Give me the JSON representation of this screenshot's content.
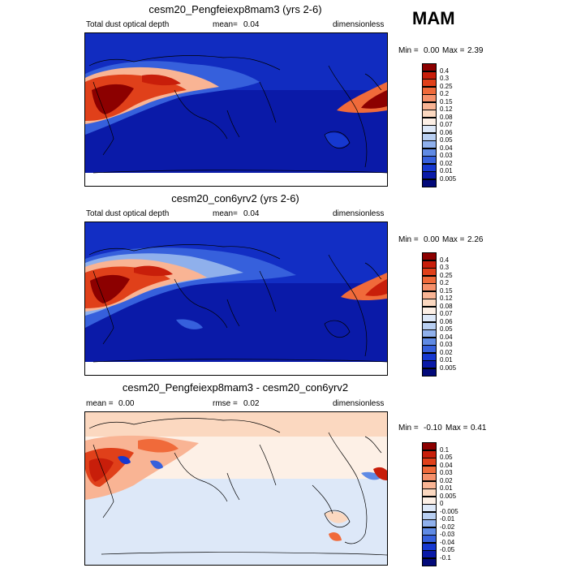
{
  "season": "MAM",
  "panels": [
    {
      "title": "cesm20_Pengfeiexp8mam3 (yrs 2-6)",
      "left_label": "Total dust optical depth",
      "mean_label": "mean=",
      "mean_value": "0.04",
      "units": "dimensionless",
      "min_label": "Min =",
      "min_value": "0.00",
      "max_label": "Max =",
      "max_value": "2.39",
      "levels": [
        "0.4",
        "0.3",
        "0.25",
        "0.2",
        "0.15",
        "0.12",
        "0.08",
        "0.07",
        "0.06",
        "0.05",
        "0.04",
        "0.03",
        "0.02",
        "0.01",
        "0.005"
      ],
      "colors": [
        "#8c0000",
        "#c81e0a",
        "#e0401a",
        "#f06a3a",
        "#f6906a",
        "#f9b494",
        "#fbd8c0",
        "#fdf0e6",
        "#dde8f8",
        "#b8cff2",
        "#8fb0ec",
        "#5f8ae4",
        "#3660dc",
        "#1638d0",
        "#0a1aa8",
        "#030a7a"
      ]
    },
    {
      "title": "cesm20_con6yrv2 (yrs 2-6)",
      "left_label": "Total dust optical depth",
      "mean_label": "mean=",
      "mean_value": "0.04",
      "units": "dimensionless",
      "min_label": "Min =",
      "min_value": "0.00",
      "max_label": "Max =",
      "max_value": "2.26",
      "levels": [
        "0.4",
        "0.3",
        "0.25",
        "0.2",
        "0.15",
        "0.12",
        "0.08",
        "0.07",
        "0.06",
        "0.05",
        "0.04",
        "0.03",
        "0.02",
        "0.01",
        "0.005"
      ],
      "colors": [
        "#8c0000",
        "#c81e0a",
        "#e0401a",
        "#f06a3a",
        "#f6906a",
        "#f9b494",
        "#fbd8c0",
        "#fdf0e6",
        "#dde8f8",
        "#b8cff2",
        "#8fb0ec",
        "#5f8ae4",
        "#3660dc",
        "#1638d0",
        "#0a1aa8",
        "#030a7a"
      ]
    },
    {
      "title": "cesm20_Pengfeiexp8mam3 - cesm20_con6yrv2",
      "left_label": "mean =",
      "mean_label": "",
      "mean_value": "0.00",
      "rmse_label": "rmse =",
      "rmse_value": "0.02",
      "units": "dimensionless",
      "min_label": "Min =",
      "min_value": "-0.10",
      "max_label": "Max =",
      "max_value": "0.41",
      "levels": [
        "0.1",
        "0.05",
        "0.04",
        "0.03",
        "0.02",
        "0.01",
        "0.005",
        "0",
        "-0.005",
        "-0.01",
        "-0.02",
        "-0.03",
        "-0.04",
        "-0.05",
        "-0.1"
      ],
      "colors": [
        "#8c0000",
        "#c81e0a",
        "#e0401a",
        "#f06a3a",
        "#f6906a",
        "#f9b494",
        "#fbd8c0",
        "#fdf0e6",
        "#dde8f8",
        "#b8cff2",
        "#8fb0ec",
        "#5f8ae4",
        "#3660dc",
        "#1638d0",
        "#0a1aa8",
        "#030a7a"
      ]
    }
  ],
  "chart_data": [
    {
      "type": "heatmap",
      "title": "cesm20_Pengfeiexp8mam3 (yrs 2-6)",
      "variable": "Total dust optical depth",
      "units": "dimensionless",
      "mean": 0.04,
      "min": 0.0,
      "max": 2.39,
      "contour_levels": [
        0.005,
        0.01,
        0.02,
        0.03,
        0.04,
        0.05,
        0.06,
        0.07,
        0.08,
        0.12,
        0.15,
        0.2,
        0.25,
        0.3,
        0.4
      ]
    },
    {
      "type": "heatmap",
      "title": "cesm20_con6yrv2 (yrs 2-6)",
      "variable": "Total dust optical depth",
      "units": "dimensionless",
      "mean": 0.04,
      "min": 0.0,
      "max": 2.26,
      "contour_levels": [
        0.005,
        0.01,
        0.02,
        0.03,
        0.04,
        0.05,
        0.06,
        0.07,
        0.08,
        0.12,
        0.15,
        0.2,
        0.25,
        0.3,
        0.4
      ]
    },
    {
      "type": "heatmap",
      "title": "cesm20_Pengfeiexp8mam3 - cesm20_con6yrv2",
      "units": "dimensionless",
      "mean": 0.0,
      "rmse": 0.02,
      "min": -0.1,
      "max": 0.41,
      "contour_levels": [
        -0.1,
        -0.05,
        -0.04,
        -0.03,
        -0.02,
        -0.01,
        -0.005,
        0,
        0.005,
        0.01,
        0.02,
        0.03,
        0.04,
        0.05,
        0.1
      ]
    }
  ]
}
